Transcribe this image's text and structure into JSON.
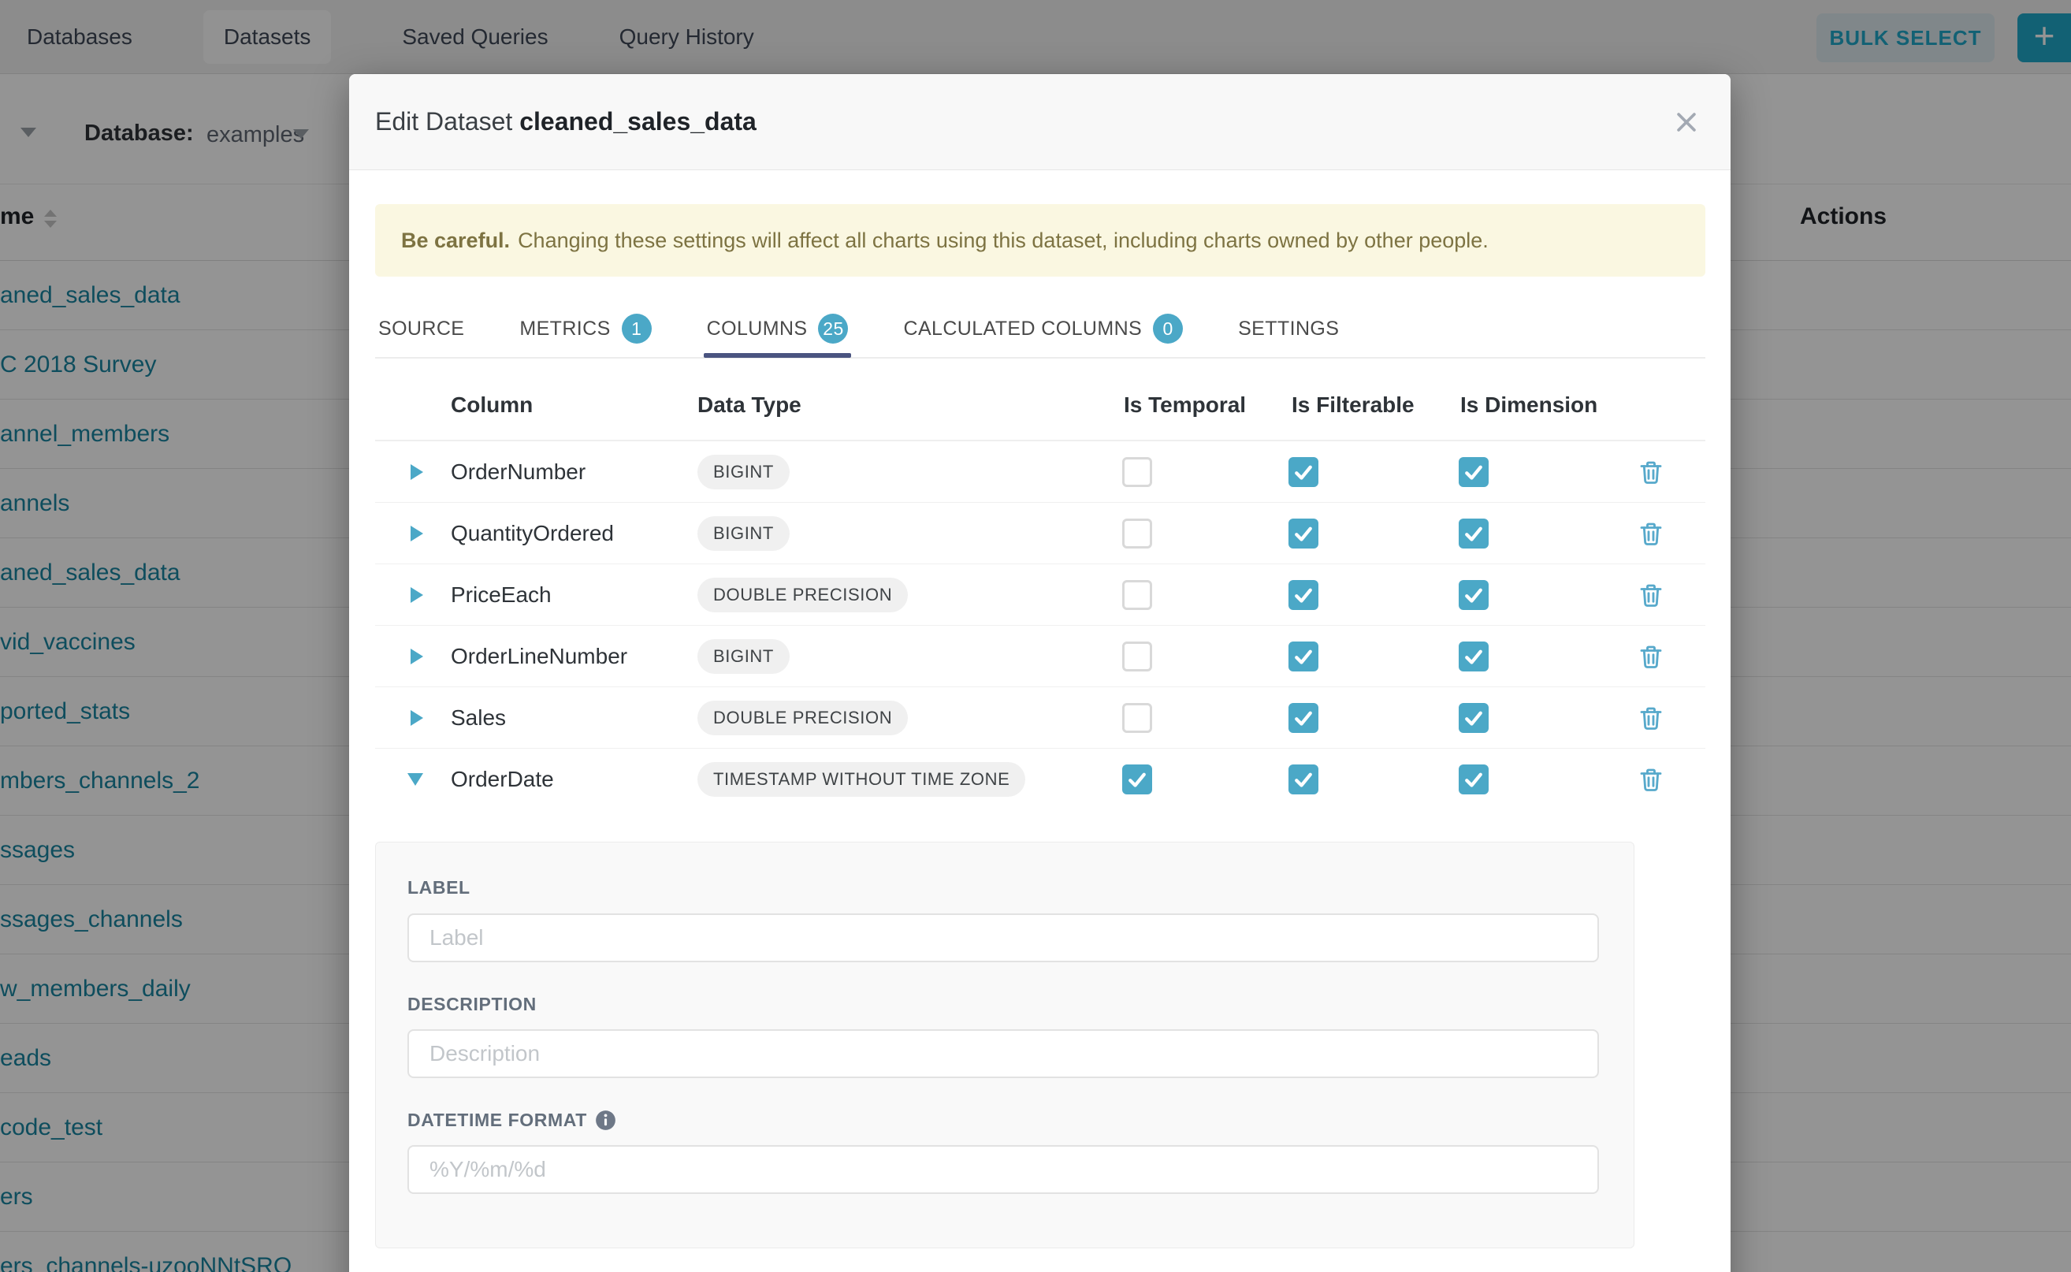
{
  "nav": {
    "tabs": [
      {
        "label": "Databases",
        "active": false
      },
      {
        "label": "Datasets",
        "active": true
      },
      {
        "label": "Saved Queries",
        "active": false
      },
      {
        "label": "Query History",
        "active": false
      }
    ],
    "bulk_select_label": "BULK SELECT",
    "add_button_label": "+"
  },
  "page": {
    "filter_label": "Database:",
    "filter_value": "examples",
    "name_column_header": "me",
    "actions_column_header": "Actions",
    "dataset_rows": [
      "aned_sales_data",
      "C 2018 Survey",
      "annel_members",
      "annels",
      "aned_sales_data",
      "vid_vaccines",
      "ported_stats",
      "mbers_channels_2",
      "ssages",
      "ssages_channels",
      "w_members_daily",
      "eads",
      "code_test",
      "ers",
      "ers_channels-uzooNNtSRO"
    ]
  },
  "modal": {
    "title_prefix": "Edit Dataset",
    "title_dataset": "cleaned_sales_data",
    "warning_bold": "Be careful.",
    "warning_text": "Changing these settings will affect all charts using this dataset, including charts owned by other people.",
    "tabs": [
      {
        "label": "SOURCE",
        "badge": null,
        "active": false
      },
      {
        "label": "METRICS",
        "badge": "1",
        "active": false
      },
      {
        "label": "COLUMNS",
        "badge": "25",
        "active": true
      },
      {
        "label": "CALCULATED COLUMNS",
        "badge": "0",
        "active": false
      },
      {
        "label": "SETTINGS",
        "badge": null,
        "active": false
      }
    ],
    "columns_table": {
      "headers": [
        "Column",
        "Data Type",
        "Is Temporal",
        "Is Filterable",
        "Is Dimension"
      ],
      "rows": [
        {
          "name": "OrderNumber",
          "type": "BIGINT",
          "is_temporal": false,
          "is_filterable": true,
          "is_dimension": true,
          "expanded": false
        },
        {
          "name": "QuantityOrdered",
          "type": "BIGINT",
          "is_temporal": false,
          "is_filterable": true,
          "is_dimension": true,
          "expanded": false
        },
        {
          "name": "PriceEach",
          "type": "DOUBLE PRECISION",
          "is_temporal": false,
          "is_filterable": true,
          "is_dimension": true,
          "expanded": false
        },
        {
          "name": "OrderLineNumber",
          "type": "BIGINT",
          "is_temporal": false,
          "is_filterable": true,
          "is_dimension": true,
          "expanded": false
        },
        {
          "name": "Sales",
          "type": "DOUBLE PRECISION",
          "is_temporal": false,
          "is_filterable": true,
          "is_dimension": true,
          "expanded": false
        },
        {
          "name": "OrderDate",
          "type": "TIMESTAMP WITHOUT TIME ZONE",
          "is_temporal": true,
          "is_filterable": true,
          "is_dimension": true,
          "expanded": true
        }
      ]
    },
    "expanded_editor": {
      "label_field": {
        "label": "LABEL",
        "placeholder": "Label",
        "value": ""
      },
      "description_field": {
        "label": "DESCRIPTION",
        "placeholder": "Description",
        "value": ""
      },
      "datetime_field": {
        "label": "DATETIME FORMAT",
        "placeholder": "%Y/%m/%d",
        "value": ""
      }
    }
  },
  "colors": {
    "accent_teal": "#4BA8C7",
    "link_teal": "#1985A0",
    "tab_underline_navy": "#4A5480",
    "warning_bg": "#FAF7E1",
    "warning_text": "#7D7342",
    "primary_button": "#20A7C9"
  }
}
